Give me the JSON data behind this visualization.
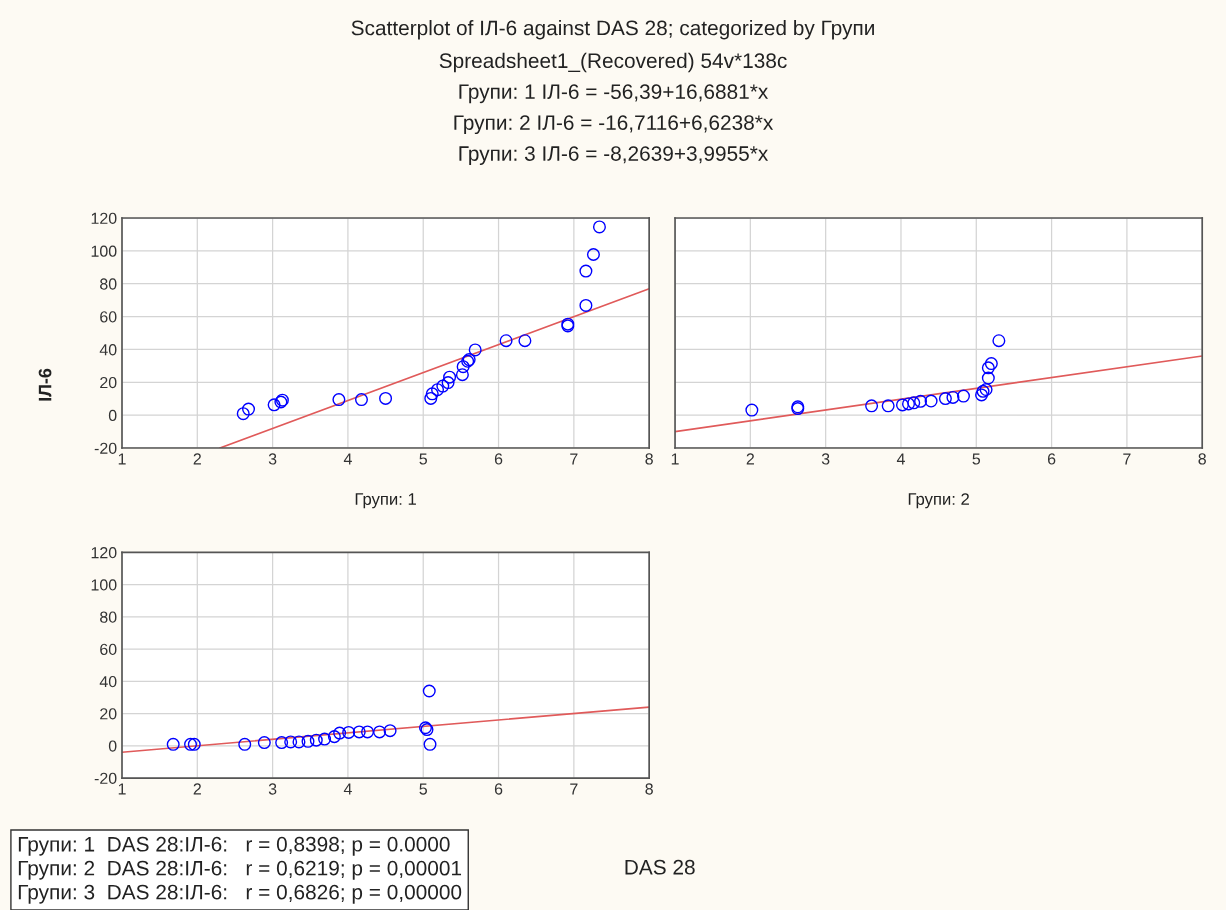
{
  "chart_data": [
    {
      "type": "scatter",
      "title": "Scatterplot of ІЛ-6 against DAS 28; categorized by Групи",
      "subtitle": "Spreadsheet1_(Recovered) 54v*138c",
      "annotations": [
        "Групи: 1 ІЛ-6 = -56,39+16,6881*x",
        "Групи: 2 ІЛ-6 = -16,7116+6,6238*x",
        "Групи: 3 ІЛ-6 = -8,2639+3,9955*x"
      ],
      "xlabel": "Групи: 1",
      "ylabel": "ІЛ-6",
      "xlim": [
        1,
        8
      ],
      "xticks": [
        1,
        2,
        3,
        4,
        5,
        6,
        7,
        8
      ],
      "ylim": [
        -20,
        120
      ],
      "yticks": [
        -20,
        0,
        20,
        40,
        60,
        80,
        100,
        120
      ],
      "grid": true,
      "series": [
        {
          "marker": "circle",
          "color": "#0000ff",
          "x": [
            2.61,
            2.68,
            3.02,
            3.11,
            3.13,
            3.88,
            4.18,
            4.5,
            5.1,
            5.12,
            5.19,
            5.26,
            5.33,
            5.35,
            5.52,
            5.53,
            5.59,
            5.61,
            5.69,
            6.1,
            6.35,
            6.92,
            6.92,
            7.16,
            7.16,
            7.26,
            7.34
          ],
          "values": [
            0.9,
            3.7,
            6.3,
            8.0,
            9.1,
            9.5,
            9.5,
            10.2,
            10.2,
            13.0,
            15.5,
            17.7,
            19.8,
            23.1,
            24.6,
            29.5,
            32.8,
            33.8,
            39.7,
            45.3,
            45.3,
            55.4,
            54.3,
            66.8,
            87.7,
            97.8,
            114.6
          ]
        },
        {
          "type": "line",
          "marker": "none",
          "color": "#e05a5a",
          "x": [
            2.3,
            8
          ],
          "values": [
            -20,
            77
          ]
        }
      ]
    },
    {
      "type": "scatter",
      "xlabel": "Групи: 2",
      "tick_labels": "x",
      "xlim": [
        1,
        8
      ],
      "xticks": [
        1,
        2,
        3,
        4,
        5,
        6,
        7,
        8
      ],
      "ylim": [
        -20,
        120
      ],
      "yticks": [
        {
          "value": -20,
          "label": null
        },
        {
          "value": 0,
          "label": null
        },
        {
          "value": 20,
          "label": null
        },
        {
          "value": 40,
          "label": null
        },
        {
          "value": 60,
          "label": null
        },
        {
          "value": 80,
          "label": null
        },
        {
          "value": 100,
          "label": null
        },
        {
          "value": 120,
          "label": null
        }
      ],
      "grid": true,
      "series": [
        {
          "marker": "circle",
          "color": "#0000ff",
          "x": [
            2.02,
            2.63,
            2.63,
            3.61,
            3.83,
            4.02,
            4.1,
            4.17,
            4.26,
            4.4,
            4.59,
            4.69,
            4.83,
            5.07,
            5.09,
            5.13,
            5.16,
            5.16,
            5.2,
            5.3
          ],
          "values": [
            3.1,
            5.1,
            4.0,
            5.7,
            5.7,
            6.2,
            6.8,
            7.5,
            8.4,
            8.6,
            10.1,
            10.8,
            11.6,
            12.3,
            14.5,
            15.6,
            22.6,
            28.8,
            31.4,
            45.3
          ]
        },
        {
          "type": "line",
          "marker": "none",
          "color": "#e05a5a",
          "x": [
            1,
            8
          ],
          "values": [
            -10,
            36
          ]
        }
      ]
    },
    {
      "type": "scatter",
      "xlabel": "DAS 28",
      "annotations": [
        "Групи: 1  DAS 28:ІЛ-6:   r = 0,8398; p = 0.0000",
        "Групи: 2  DAS 28:ІЛ-6:   r = 0,6219; p = 0,00001",
        "Групи: 3  DAS 28:ІЛ-6:   r = 0,6826; p = 0,00000"
      ],
      "xlim": [
        1,
        8
      ],
      "xticks": [
        1,
        2,
        3,
        4,
        5,
        6,
        7,
        8
      ],
      "ylim": [
        -20,
        120
      ],
      "yticks": [
        -20,
        0,
        20,
        40,
        60,
        80,
        100,
        120
      ],
      "grid": true,
      "series": [
        {
          "marker": "circle",
          "color": "#0000ff",
          "x": [
            1.68,
            1.91,
            1.96,
            2.63,
            2.89,
            3.12,
            3.24,
            3.35,
            3.47,
            3.58,
            3.69,
            3.82,
            3.89,
            4.01,
            4.15,
            4.26,
            4.42,
            4.56,
            5.03,
            5.05,
            5.08,
            5.09
          ],
          "values": [
            0.9,
            0.9,
            0.9,
            0.9,
            2.0,
            2.0,
            2.4,
            2.4,
            2.8,
            3.5,
            4.2,
            5.7,
            7.9,
            8.3,
            8.6,
            8.6,
            8.6,
            9.4,
            11.2,
            10.1,
            34.0,
            0.9
          ]
        },
        {
          "type": "line",
          "marker": "none",
          "color": "#e05a5a",
          "x": [
            1,
            8
          ],
          "values": [
            -4,
            24
          ]
        }
      ]
    }
  ]
}
